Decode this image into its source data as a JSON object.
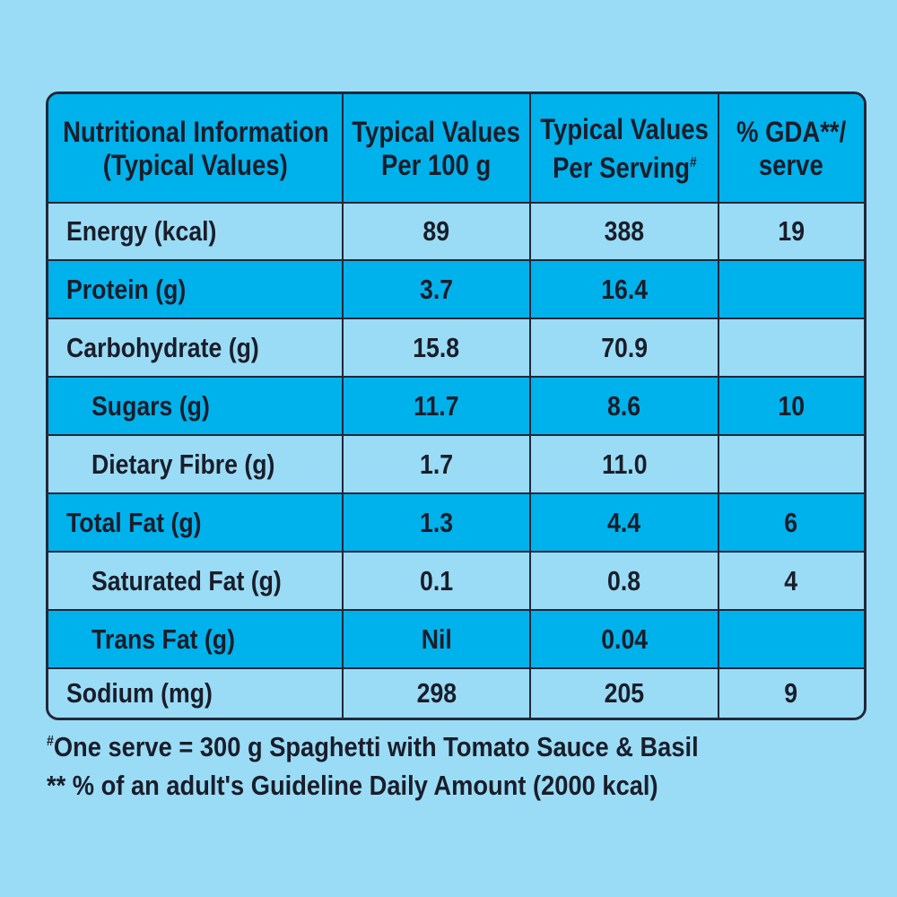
{
  "colors": {
    "background": "#9adcf5",
    "header_row": "#00b2ec",
    "border": "#23263a",
    "text": "#1a1d2a"
  },
  "header": {
    "col1_line1": "Nutritional Information",
    "col1_line2": "(Typical Values)",
    "col2_line1": "Typical Values",
    "col2_line2": "Per 100 g",
    "col3_line1": "Typical Values",
    "col3_line2": "Per Serving",
    "col3_mark": "#",
    "col4_line1": "% GDA**/",
    "col4_line2": "serve"
  },
  "rows": [
    {
      "label": "Energy (kcal)",
      "per100": "89",
      "perServing": "388",
      "gda": "19"
    },
    {
      "label": "Protein (g)",
      "per100": "3.7",
      "perServing": "16.4",
      "gda": ""
    },
    {
      "label": "Carbohydrate (g)",
      "per100": "15.8",
      "perServing": "70.9",
      "gda": ""
    },
    {
      "label": "Sugars (g)",
      "per100": "11.7",
      "perServing": "8.6",
      "gda": "10"
    },
    {
      "label": "Dietary Fibre (g)",
      "per100": "1.7",
      "perServing": "11.0",
      "gda": ""
    },
    {
      "label": "Total Fat (g)",
      "per100": "1.3",
      "perServing": "4.4",
      "gda": "6"
    },
    {
      "label": "Saturated Fat (g)",
      "per100": "0.1",
      "perServing": "0.8",
      "gda": "4"
    },
    {
      "label": "Trans Fat (g)",
      "per100": "Nil",
      "perServing": "0.04",
      "gda": ""
    },
    {
      "label": "Sodium (mg)",
      "per100": "298",
      "perServing": "205",
      "gda": "9"
    }
  ],
  "footnotes": {
    "serve_mark": "#",
    "serve_text": "One serve = 300 g Spaghetti with Tomato Sauce & Basil",
    "gda_text": "** % of an adult's Guideline Daily Amount (2000 kcal)"
  }
}
